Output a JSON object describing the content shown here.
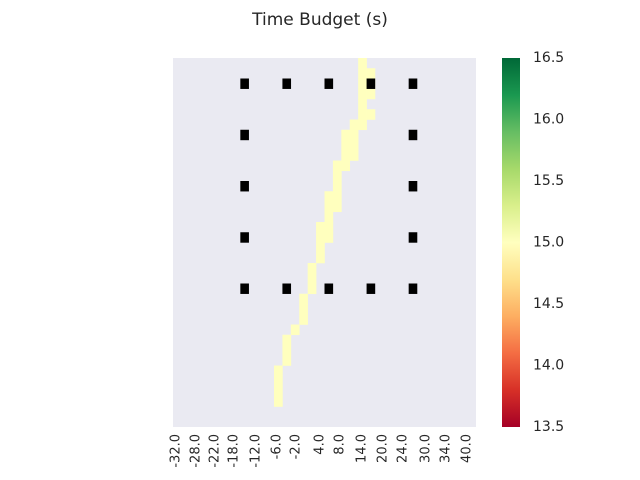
{
  "chart_data": {
    "type": "heatmap",
    "title": "Time Budget (s)",
    "xlabel": "",
    "ylabel": "",
    "x_tick_labels": [
      "-32.0",
      "-28.0",
      "-22.0",
      "-18.0",
      "-12.0",
      "-6.0",
      "-2.0",
      "4.0",
      "8.0",
      "14.0",
      "20.0",
      "24.0",
      "30.0",
      "34.0",
      "40.0"
    ],
    "y_tick_labels": [],
    "grid_size": [
      36,
      36
    ],
    "background_color": "#eaeaf2",
    "path_cells": {
      "value": 15.0,
      "color": "#ffffbe",
      "cells": [
        [
          0,
          22
        ],
        [
          1,
          22
        ],
        [
          1,
          23
        ],
        [
          2,
          22
        ],
        [
          2,
          23
        ],
        [
          3,
          22
        ],
        [
          3,
          23
        ],
        [
          4,
          22
        ],
        [
          5,
          22
        ],
        [
          5,
          23
        ],
        [
          6,
          21
        ],
        [
          6,
          22
        ],
        [
          7,
          20
        ],
        [
          7,
          21
        ],
        [
          8,
          20
        ],
        [
          8,
          21
        ],
        [
          9,
          20
        ],
        [
          9,
          21
        ],
        [
          10,
          19
        ],
        [
          10,
          20
        ],
        [
          11,
          19
        ],
        [
          12,
          19
        ],
        [
          13,
          18
        ],
        [
          13,
          19
        ],
        [
          14,
          18
        ],
        [
          14,
          19
        ],
        [
          15,
          18
        ],
        [
          16,
          17
        ],
        [
          16,
          18
        ],
        [
          17,
          17
        ],
        [
          17,
          18
        ],
        [
          18,
          17
        ],
        [
          19,
          17
        ],
        [
          20,
          16
        ],
        [
          21,
          16
        ],
        [
          22,
          16
        ],
        [
          23,
          15
        ],
        [
          24,
          15
        ],
        [
          25,
          15
        ],
        [
          26,
          14
        ],
        [
          27,
          13
        ],
        [
          28,
          13
        ],
        [
          29,
          13
        ],
        [
          30,
          12
        ],
        [
          31,
          12
        ],
        [
          32,
          12
        ],
        [
          33,
          12
        ]
      ]
    },
    "marker_cells": {
      "color": "#000000",
      "cells": [
        [
          2,
          8
        ],
        [
          2,
          13
        ],
        [
          2,
          18
        ],
        [
          2,
          23
        ],
        [
          2,
          28
        ],
        [
          7,
          8
        ],
        [
          7,
          28
        ],
        [
          12,
          8
        ],
        [
          12,
          28
        ],
        [
          17,
          8
        ],
        [
          17,
          28
        ],
        [
          22,
          8
        ],
        [
          22,
          13
        ],
        [
          22,
          18
        ],
        [
          22,
          23
        ],
        [
          22,
          28
        ]
      ]
    },
    "colorbar": {
      "min": 13.5,
      "max": 16.5,
      "ticks": [
        "16.5",
        "16.0",
        "15.5",
        "15.0",
        "14.5",
        "14.0",
        "13.5"
      ],
      "colormap": "RdYlGn",
      "stops": [
        "#a50026",
        "#d73027",
        "#f46d43",
        "#fdae61",
        "#fee08b",
        "#ffffbf",
        "#d9ef8b",
        "#a6d96a",
        "#66bd63",
        "#1a9850",
        "#006837"
      ]
    }
  }
}
